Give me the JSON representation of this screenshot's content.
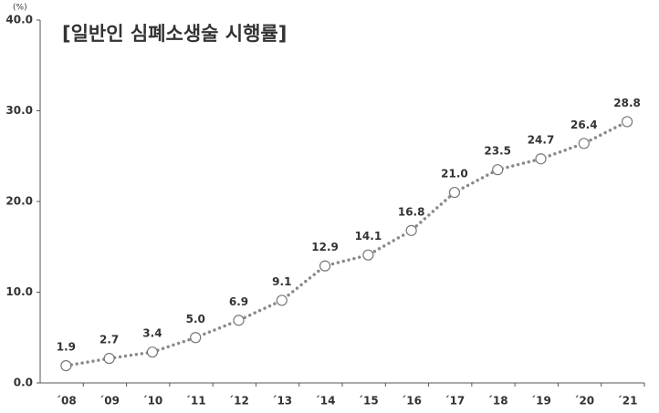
{
  "chart_data": {
    "type": "line",
    "title": "[일반인 심폐소생술 시행률]",
    "y_unit": "(%)",
    "categories": [
      "´08",
      "´09",
      "´10",
      "´11",
      "´12",
      "´13",
      "´14",
      "´15",
      "´16",
      "´17",
      "´18",
      "´19",
      "´20",
      "´21"
    ],
    "values": [
      1.9,
      2.7,
      3.4,
      5.0,
      6.9,
      9.1,
      12.9,
      14.1,
      16.8,
      21.0,
      23.5,
      24.7,
      26.4,
      28.8
    ],
    "value_labels": [
      "1.9",
      "2.7",
      "3.4",
      "5.0",
      "6.9",
      "9.1",
      "12.9",
      "14.1",
      "16.8",
      "21.0",
      "23.5",
      "24.7",
      "26.4",
      "28.8"
    ],
    "color": "#8a8a8a",
    "ylim": [
      0,
      40
    ],
    "yticks": [
      {
        "value": 0,
        "label": "0.0"
      },
      {
        "value": 10,
        "label": "10.0"
      },
      {
        "value": 20,
        "label": "20.0"
      },
      {
        "value": 30,
        "label": "30.0"
      },
      {
        "value": 40,
        "label": "40.0"
      }
    ],
    "grid": false
  }
}
